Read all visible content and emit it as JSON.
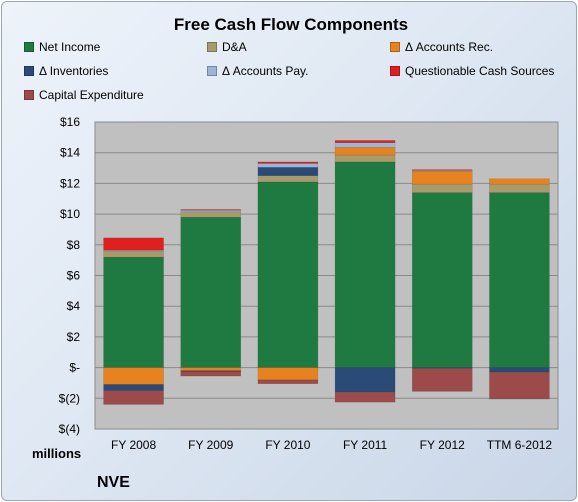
{
  "chart_data": {
    "type": "bar",
    "stacked": true,
    "title": "Free Cash Flow Components",
    "ylabel_units": "millions",
    "company": "NVE",
    "categories": [
      "FY 2008",
      "FY 2009",
      "FY 2010",
      "FY 2011",
      "FY 2012",
      "TTM 6-2012"
    ],
    "y_ticks": [
      "$16",
      "$14",
      "$12",
      "$10",
      "$8",
      "$6",
      "$4",
      "$2",
      "$-",
      "$(2)",
      "$(4)"
    ],
    "ylim": [
      -4,
      16
    ],
    "grid": true,
    "legend_position": "top",
    "series": [
      {
        "name": "Net Income",
        "color": "#1e7a40",
        "values": [
          7.2,
          9.8,
          12.1,
          13.4,
          11.4,
          11.4
        ]
      },
      {
        "name": "D&A",
        "color": "#a89a6a",
        "values": [
          0.4,
          0.35,
          0.4,
          0.45,
          0.55,
          0.55
        ]
      },
      {
        "name": "Δ Accounts Rec.",
        "color": "#e8821e",
        "values": [
          -1.1,
          -0.2,
          -0.8,
          0.5,
          0.85,
          0.35
        ]
      },
      {
        "name": "Δ Inventories",
        "color": "#2a4a78",
        "values": [
          -0.4,
          -0.05,
          0.55,
          -1.6,
          -0.05,
          -0.3
        ]
      },
      {
        "name": "Δ Accounts Pay.",
        "color": "#9ab6d6",
        "values": [
          0.05,
          0.1,
          0.25,
          0.3,
          0.05,
          0.0
        ]
      },
      {
        "name": "Questionable Cash Sources",
        "color": "#e02020",
        "values": [
          0.8,
          0.05,
          0.1,
          0.15,
          0.05,
          0.0
        ]
      },
      {
        "name": "Capital Expenditure",
        "color": "#9c4a4a",
        "values": [
          -0.9,
          -0.3,
          -0.25,
          -0.65,
          -1.5,
          -1.75
        ]
      }
    ]
  }
}
